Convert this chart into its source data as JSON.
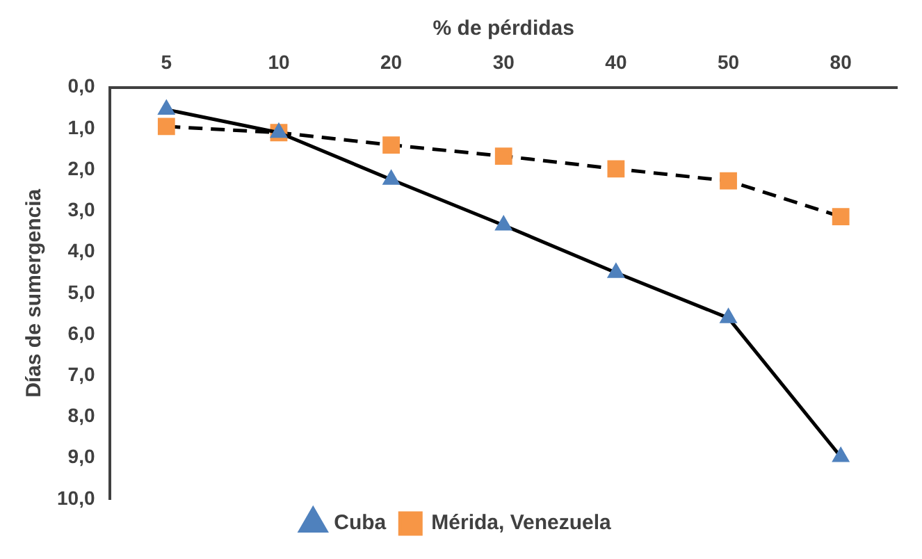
{
  "chart_data": {
    "type": "line",
    "xlabel": "% de pérdidas",
    "ylabel": "Días de sumergencia",
    "categories": [
      "5",
      "10",
      "20",
      "30",
      "40",
      "50",
      "80"
    ],
    "series": [
      {
        "name": "Cuba",
        "color": "#4f81bd",
        "marker": "triangle",
        "line_style": "solid",
        "values": [
          0.54,
          1.1,
          2.24,
          3.35,
          4.5,
          5.6,
          8.97
        ]
      },
      {
        "name": "Mérida, Venezuela",
        "color": "#f79646",
        "marker": "square",
        "line_style": "dashed",
        "values": [
          0.95,
          1.1,
          1.4,
          1.67,
          1.98,
          2.27,
          3.14
        ]
      }
    ],
    "ylim": [
      10,
      0
    ],
    "yticks": [
      {
        "value": 0,
        "label": "0,0"
      },
      {
        "value": 1,
        "label": "1,0"
      },
      {
        "value": 2,
        "label": "2,0"
      },
      {
        "value": 3,
        "label": "3,0"
      },
      {
        "value": 4,
        "label": "4,0"
      },
      {
        "value": 5,
        "label": "5,0"
      },
      {
        "value": 6,
        "label": "6,0"
      },
      {
        "value": 7,
        "label": "7,0"
      },
      {
        "value": 8,
        "label": "8,0"
      },
      {
        "value": 9,
        "label": "9,0"
      },
      {
        "value": 10,
        "label": "10,0"
      }
    ],
    "grid": false,
    "legend": "bottom"
  }
}
